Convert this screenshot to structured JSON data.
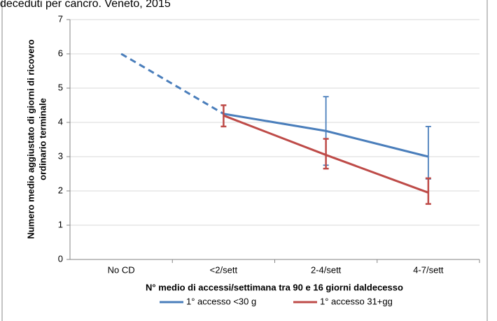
{
  "chart_data": {
    "type": "line",
    "title": "deceduti per cancro. Veneto, 2015",
    "ylabel": [
      "Numero medio aggiustato di giorni di ricovero",
      "ordinario terminale"
    ],
    "xlabel": "N° medio di accessi/settimana tra 90 e 16 giorni daldecesso",
    "categories": [
      "No CD",
      "<2/sett",
      "2-4/sett",
      "4-7/sett"
    ],
    "series": [
      {
        "name": "1° accesso <30 g",
        "color": "#4a7ebb",
        "dash_first_segment": true,
        "values": [
          6,
          4.25,
          3.75,
          3.0
        ],
        "err_low": [
          null,
          null,
          2.75,
          2.35
        ],
        "err_high": [
          null,
          null,
          4.75,
          3.88
        ]
      },
      {
        "name": "1° accesso 31+gg",
        "color": "#be4b48",
        "dash_first_segment": false,
        "values": [
          null,
          4.2,
          3.05,
          1.95
        ],
        "err_low": [
          null,
          3.88,
          2.65,
          1.62
        ],
        "err_high": [
          null,
          4.5,
          3.52,
          2.37
        ]
      }
    ],
    "ylim": [
      0,
      7
    ],
    "yticks": [
      0,
      1,
      2,
      3,
      4,
      5,
      6,
      7
    ],
    "grid": true,
    "legend": "bottom"
  }
}
